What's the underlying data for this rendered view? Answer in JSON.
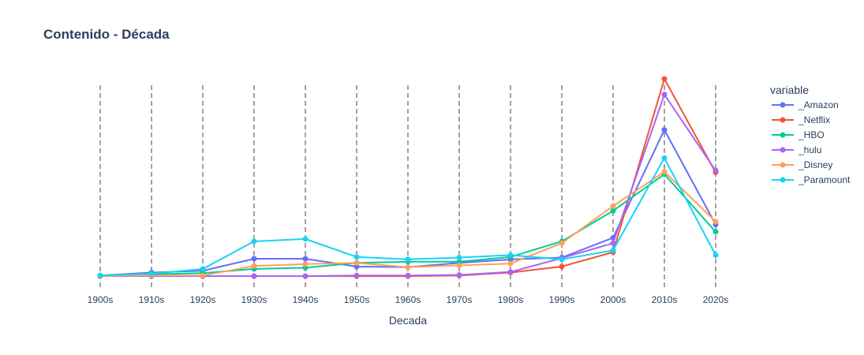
{
  "chart_data": {
    "type": "line",
    "title": "Contenido - Década",
    "xlabel": "Decada",
    "ylabel": "",
    "x": [
      "1900s",
      "1910s",
      "1920s",
      "1930s",
      "1940s",
      "1950s",
      "1960s",
      "1970s",
      "1980s",
      "1990s",
      "2000s",
      "2010s",
      "2020s"
    ],
    "ylim": [
      -2,
      33
    ],
    "y_tick_labels_shown": false,
    "vertical_grid": "dashed",
    "legend_title": "variable",
    "legend_position": "right",
    "series": [
      {
        "name": "_Amazon",
        "color": "#636efa",
        "values": [
          0.2,
          0.7,
          1.0,
          3.0,
          3.0,
          1.7,
          1.6,
          2.3,
          2.9,
          3.2,
          6.5,
          24.5,
          8.7
        ]
      },
      {
        "name": "_Netflix",
        "color": "#ef553b",
        "values": [
          0.1,
          0.1,
          0.1,
          0.1,
          0.1,
          0.1,
          0.1,
          0.2,
          0.7,
          1.7,
          4.1,
          33.0,
          17.4
        ]
      },
      {
        "name": "_HBO",
        "color": "#00cc96",
        "values": [
          0.2,
          0.4,
          0.6,
          1.3,
          1.5,
          2.3,
          2.5,
          2.5,
          3.3,
          5.9,
          11.0,
          17.1,
          7.5
        ]
      },
      {
        "name": "_hulu",
        "color": "#ab63fa",
        "values": [
          0.1,
          0.1,
          0.1,
          0.1,
          0.1,
          0.2,
          0.2,
          0.3,
          0.8,
          3.1,
          5.6,
          30.4,
          17.7
        ]
      },
      {
        "name": "_Disney",
        "color": "#ffa15a",
        "values": [
          0.1,
          0.2,
          0.2,
          1.8,
          2.1,
          2.3,
          1.6,
          1.9,
          2.2,
          5.6,
          11.8,
          17.5,
          9.2
        ]
      },
      {
        "name": "_Paramount",
        "color": "#19d3f3",
        "values": [
          0.2,
          0.5,
          1.3,
          5.9,
          6.3,
          3.3,
          2.9,
          3.2,
          3.6,
          2.9,
          4.4,
          19.8,
          3.6
        ]
      }
    ]
  }
}
